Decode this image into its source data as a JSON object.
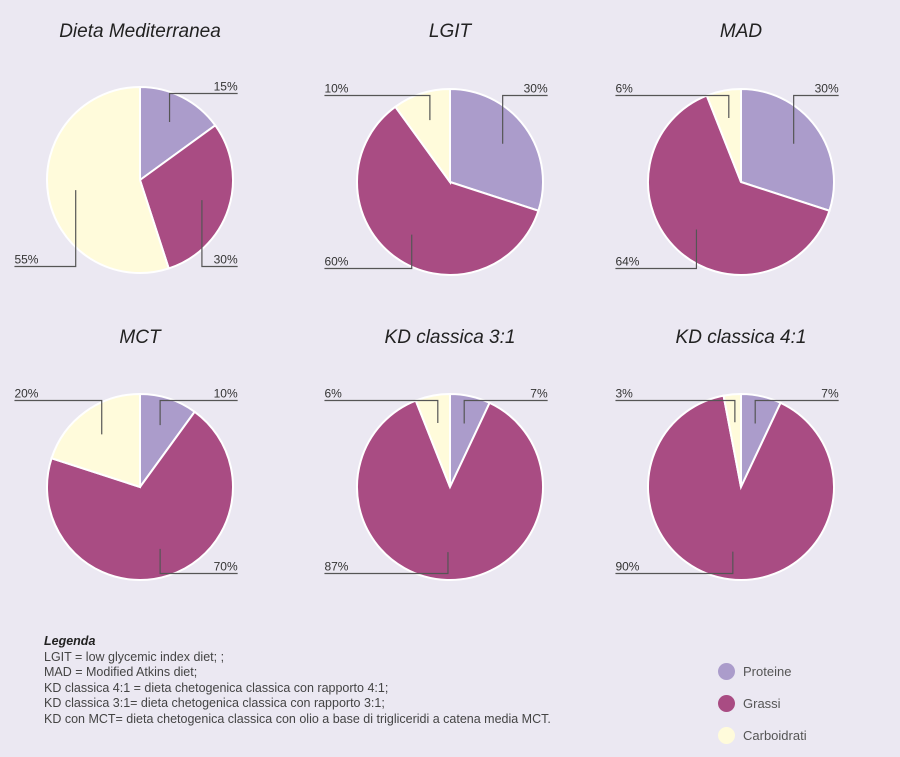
{
  "chart_data": [
    {
      "type": "pie",
      "title": "Dieta Mediterranea",
      "categories": [
        "Proteine",
        "Grassi",
        "Carboidrati"
      ],
      "values": [
        15,
        30,
        55
      ],
      "labels": [
        "15%",
        "30%",
        "55%"
      ]
    },
    {
      "type": "pie",
      "title": "LGIT",
      "categories": [
        "Proteine",
        "Grassi",
        "Carboidrati"
      ],
      "values": [
        30,
        60,
        10
      ],
      "labels": [
        "30%",
        "60%",
        "10%"
      ]
    },
    {
      "type": "pie",
      "title": "MAD",
      "categories": [
        "Proteine",
        "Grassi",
        "Carboidrati"
      ],
      "values": [
        30,
        64,
        6
      ],
      "labels": [
        "30%",
        "64%",
        "6%"
      ]
    },
    {
      "type": "pie",
      "title": "MCT",
      "categories": [
        "Proteine",
        "Grassi",
        "Carboidrati"
      ],
      "values": [
        10,
        70,
        20
      ],
      "labels": [
        "10%",
        "70%",
        "20%"
      ]
    },
    {
      "type": "pie",
      "title": "KD classica 3:1",
      "categories": [
        "Proteine",
        "Grassi",
        "Carboidrati"
      ],
      "values": [
        7,
        87,
        6
      ],
      "labels": [
        "7%",
        "87%",
        "6%"
      ]
    },
    {
      "type": "pie",
      "title": "KD classica 4:1",
      "categories": [
        "Proteine",
        "Grassi",
        "Carboidrati"
      ],
      "values": [
        7,
        90,
        3
      ],
      "labels": [
        "7%",
        "90%",
        "3%"
      ]
    }
  ],
  "colors": {
    "Proteine": "#ab9ccb",
    "Grassi": "#a94c83",
    "Carboidrati": "#fffbdb",
    "background": "#ebe8f2"
  },
  "legend": {
    "position": "bottom-right",
    "items": [
      "Proteine",
      "Grassi",
      "Carboidrati"
    ]
  },
  "notes": {
    "heading": "Legenda",
    "lines": [
      "LGIT = low glycemic index diet; ;",
      "MAD = Modified Atkins diet;",
      "KD classica 4:1 = dieta chetogenica classica con rapporto 4:1;",
      "KD classica 3:1= dieta chetogenica classica con rapporto 3:1;",
      "KD con MCT= dieta chetogenica classica con olio a base di trigliceridi a catena media MCT."
    ]
  }
}
